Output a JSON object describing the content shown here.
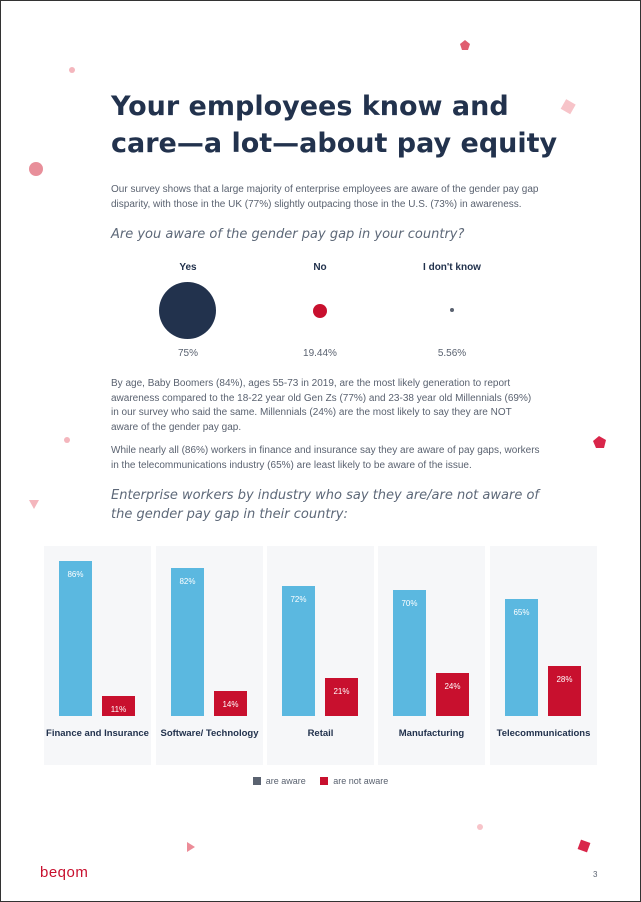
{
  "title": "Your employees know and care—a lot—about pay equity",
  "intro": "Our survey shows that a large majority of enterprise employees are aware of the gender pay gap disparity, with those in the UK (77%) slightly outpacing those in the U.S. (73%) in awareness.",
  "question1": "Are you aware of the gender pay gap in your country?",
  "awareness": [
    {
      "label": "Yes",
      "value": 75,
      "display": "75%",
      "color": "#22324d"
    },
    {
      "label": "No",
      "value": 19.44,
      "display": "19.44%",
      "color": "#c8102e"
    },
    {
      "label": "I don't know",
      "value": 5.56,
      "display": "5.56%",
      "color": "#5a6270"
    }
  ],
  "paragraph1": "By age, Baby Boomers (84%), ages 55-73 in 2019, are the most likely generation to report awareness compared to the 18-22 year old Gen Zs (77%) and 23-38 year old Millennials (69%) in our survey who said the same. Millennials (24%) are the most likely to say they are NOT aware of the gender pay gap.",
  "paragraph2": "While nearly all (86%) workers in finance and insurance say they are aware of pay gaps, workers in the telecommunications industry (65%) are least likely to be aware of the issue.",
  "question2": "Enterprise workers by industry who say they are/are not aware of the gender pay gap in their country:",
  "chart_data": {
    "type": "bar",
    "categories": [
      "Finance and Insurance",
      "Software/ Technology",
      "Retail",
      "Manufacturing",
      "Telecommunications"
    ],
    "series": [
      {
        "name": "are aware",
        "values": [
          86,
          82,
          72,
          70,
          65
        ],
        "labels": [
          "86%",
          "82%",
          "72%",
          "70%",
          "65%"
        ],
        "color": "#5bb8e0"
      },
      {
        "name": "are not aware",
        "values": [
          11,
          14,
          21,
          24,
          28
        ],
        "labels": [
          "11%",
          "14%",
          "21%",
          "24%",
          "28%"
        ],
        "color": "#c8102e"
      }
    ],
    "ylim": [
      0,
      100
    ],
    "legend_position": "bottom-center",
    "legend_swatch_colors": [
      "#5a6270",
      "#c8102e"
    ]
  },
  "footer": {
    "logo": "beqom",
    "page_number": "3"
  },
  "colors": {
    "navy": "#22324d",
    "red": "#c8102e",
    "blue": "#5bb8e0",
    "panel": "#f6f7f9"
  }
}
